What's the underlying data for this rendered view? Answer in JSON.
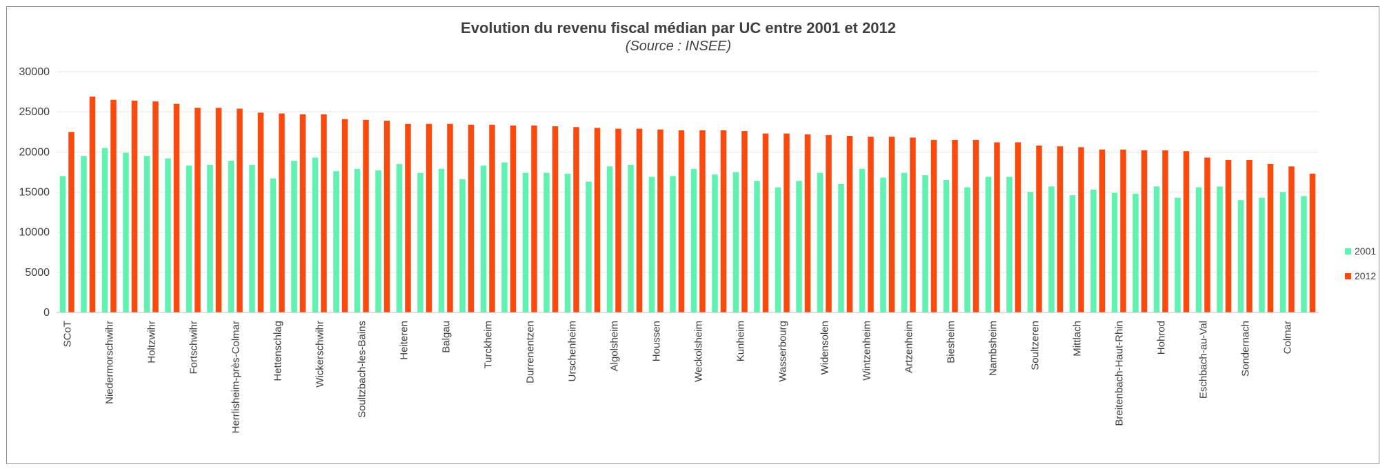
{
  "chart_data": {
    "type": "bar",
    "title": "Evolution du revenu fiscal médian par UC entre 2001 et 2012",
    "subtitle": "(Source : INSEE)",
    "xlabel": "",
    "ylabel": "",
    "ylim": [
      0,
      30000
    ],
    "yticks": [
      "0",
      "5000",
      "10000",
      "15000",
      "20000",
      "25000",
      "30000"
    ],
    "grid": true,
    "legend_position": "right",
    "categories": [
      "SCoT",
      "",
      "Niedermorschwihr",
      "",
      "Holtzwihr",
      "",
      "Fortschwihr",
      "",
      "Herrlisheim-près-Colmar",
      "",
      "Hettenschlag",
      "",
      "Wickerschwihr",
      "",
      "Soultzbach-les-Bains",
      "",
      "Heiteren",
      "",
      "Balgau",
      "",
      "Turckheim",
      "",
      "Durrenentzen",
      "",
      "Urschenheim",
      "",
      "Algolsheim",
      "",
      "Houssen",
      "",
      "Weckolsheim",
      "",
      "Kunheim",
      "",
      "Wasserbourg",
      "",
      "Widensolen",
      "",
      "Wintzenheim",
      "",
      "Artzenheim",
      "",
      "Biesheim",
      "",
      "Nambsheim",
      "",
      "Soultzeren",
      "",
      "Mittlach",
      "",
      "Breitenbach-Haut-Rhin",
      "",
      "Hohrod",
      "",
      "Eschbach-au-Val",
      "",
      "Sondernach",
      "",
      "Colmar",
      ""
    ],
    "series": [
      {
        "name": "2001",
        "color": "#5ff2b0",
        "values": [
          17000,
          19500,
          20500,
          19900,
          19500,
          19200,
          18300,
          18400,
          18900,
          18400,
          16700,
          18900,
          19300,
          17600,
          17900,
          17700,
          18500,
          17400,
          17900,
          16600,
          18300,
          18700,
          17400,
          17400,
          17300,
          16300,
          18200,
          18400,
          16900,
          17000,
          17900,
          17200,
          17500,
          16400,
          15600,
          16400,
          17400,
          16000,
          17900,
          16800,
          17400,
          17100,
          16500,
          15600,
          16900,
          16900,
          15000,
          15700,
          14600,
          15300,
          14900,
          14800,
          15700,
          14300,
          15600,
          15700,
          14000,
          14300,
          15000,
          14500
        ]
      },
      {
        "name": "2012",
        "color": "#fc4a0e",
        "values": [
          22500,
          26900,
          26500,
          26400,
          26300,
          26000,
          25500,
          25500,
          25400,
          24900,
          24800,
          24700,
          24700,
          24100,
          24000,
          23900,
          23500,
          23500,
          23500,
          23400,
          23400,
          23300,
          23300,
          23200,
          23100,
          23000,
          22900,
          22900,
          22800,
          22700,
          22700,
          22700,
          22600,
          22300,
          22300,
          22200,
          22100,
          22000,
          21900,
          21900,
          21800,
          21500,
          21500,
          21500,
          21200,
          21200,
          20800,
          20700,
          20600,
          20300,
          20300,
          20200,
          20200,
          20100,
          19300,
          19000,
          19000,
          18500,
          18200,
          17300
        ]
      }
    ]
  }
}
